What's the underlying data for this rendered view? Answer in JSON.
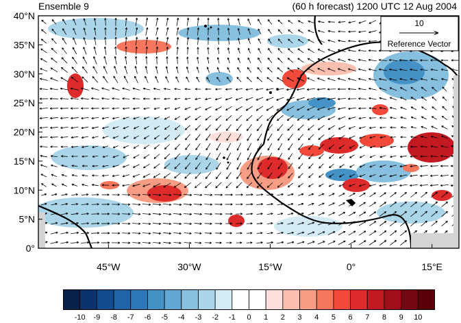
{
  "header": {
    "left_title": "Ensemble 9",
    "right_title": "(60 h forecast) 1200 UTC 12 Aug 2004"
  },
  "map": {
    "lat_range": [
      0,
      40
    ],
    "lon_range": [
      -58,
      20
    ],
    "y_ticks": [
      "0°",
      "5°N",
      "10°N",
      "15°N",
      "20°N",
      "25°N",
      "30°N",
      "35°N",
      "40°N"
    ],
    "x_ticks": [
      "45°W",
      "30°W",
      "15°W",
      "0°",
      "15°E"
    ],
    "x_tick_values": [
      -45,
      -30,
      -15,
      0,
      15
    ],
    "reference_vector": {
      "magnitude_label": "10",
      "caption": "Reference Vector"
    },
    "colors": {
      "coast": "#000000",
      "vector": "#000000",
      "land_mask": "#d4d4d4"
    }
  },
  "colorbar": {
    "labels": [
      "-10",
      "-9",
      "-8",
      "-7",
      "-6",
      "-5",
      "-4",
      "-3",
      "-2",
      "-1",
      "0",
      "1",
      "2",
      "3",
      "4",
      "5",
      "6",
      "7",
      "8",
      "9",
      "10"
    ],
    "colors": [
      "#08214a",
      "#0c336b",
      "#144d8f",
      "#1f63a8",
      "#2f78b7",
      "#4592c6",
      "#63a8d2",
      "#87c0de",
      "#abd6ea",
      "#d2ebf5",
      "#ffffff",
      "#ffffff",
      "#fde0dc",
      "#fbbfb0",
      "#f89d85",
      "#f6775e",
      "#f14a3a",
      "#dd2a2a",
      "#c31a22",
      "#9f0f1a",
      "#760710",
      "#5a0008"
    ]
  }
}
